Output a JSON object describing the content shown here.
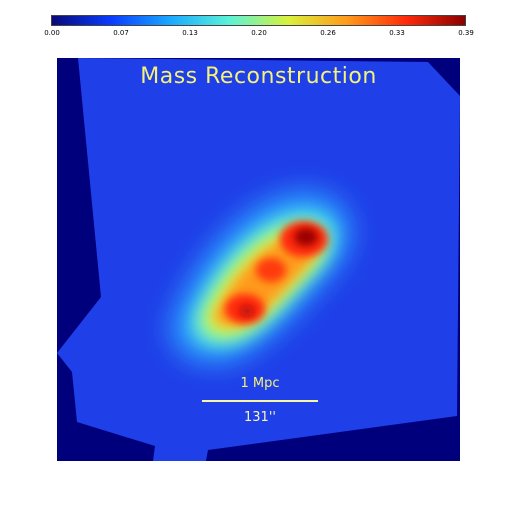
{
  "colorbar": {
    "ticks": [
      "0.00",
      "0.07",
      "0.13",
      "0.20",
      "0.26",
      "0.33",
      "0.39"
    ],
    "colors": [
      "#0a0a78",
      "#0a3cff",
      "#1aa8ff",
      "#5af2d8",
      "#d8f23c",
      "#ff9a1a",
      "#ff2a0a",
      "#8a0000"
    ]
  },
  "map": {
    "title": "Mass Reconstruction",
    "scale_length": "1 Mpc",
    "scale_angle": "131''",
    "background_color": "#00007d",
    "field_color": "#1f3fe8",
    "text_color": "#f4f27a"
  }
}
